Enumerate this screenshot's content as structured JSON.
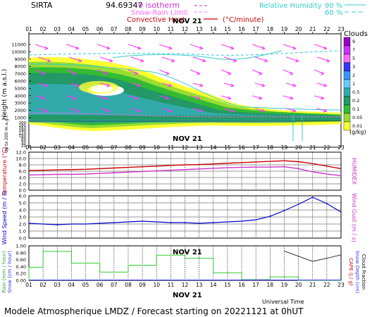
{
  "header": {
    "station": "SIRTA",
    "coords": "94.69347",
    "legend_isotherm": "0 isotherm",
    "legend_snow_rain": "Snow-Rain Limit",
    "legend_convective": "Convective Heat.",
    "legend_convective_unit": "(°C/minute)",
    "legend_rh": "Relative Humidity",
    "rh_90": "90 %",
    "rh_60": "60 %",
    "date_label": "NOV 21"
  },
  "hours": [
    "01",
    "02",
    "03",
    "04",
    "05",
    "06",
    "07",
    "08",
    "09",
    "10",
    "11",
    "12",
    "13",
    "14",
    "15",
    "16",
    "17",
    "18",
    "19",
    "20",
    "21",
    "22",
    "23"
  ],
  "panels": {
    "clouds": {
      "ylabel": "Height (m a.s.l.)",
      "ylabel_low": "Up to 200 m a.g.l.",
      "yticks_upper": [
        "11000",
        "10000",
        "9000",
        "8000",
        "7000",
        "6000",
        "5000",
        "4000",
        "3000",
        "2000",
        "1000"
      ],
      "yticks_lower": [
        "200",
        "180",
        "160",
        "140",
        "120",
        "100",
        "80",
        "60",
        "40",
        "20"
      ],
      "colorbar_title": "Clouds",
      "colorbar_labels": [
        "9",
        "7",
        "5",
        "3",
        "2",
        "1",
        "0.5",
        "0.2",
        "0.1",
        "0.05",
        "0.01"
      ],
      "colorbar_unit": "(g/kg)",
      "colorbar_colors": [
        "#9900cc",
        "#cc33ff",
        "#ff66ff",
        "#3333ff",
        "#3399ff",
        "#66ccff",
        "#33aaaa",
        "#229966",
        "#33bb33",
        "#99dd33",
        "#ffff33"
      ]
    },
    "temperature": {
      "ylabel_left": "Temperature (°C)",
      "ylabel_right": "HUMIDEX",
      "yticks": [
        "12.0",
        "10.0",
        "8.0",
        "6.0",
        "4.0",
        "2.0",
        "0.0"
      ]
    },
    "wind": {
      "ylabel_left": "Wind Speed (m / s)",
      "ylabel_right": "Wind Gust (m / s)",
      "yticks": [
        "6.0",
        "5.0",
        "4.0",
        "3.0",
        "2.0",
        "1.0",
        "0.0"
      ]
    },
    "rain": {
      "ylabel_left": "Rain (mm / hour)",
      "ylabel_left2": "Snow (cm / hour)",
      "ylabel_right": "CAPE (J / g)",
      "ylabel_right2": "Snow Depth (cm)",
      "ylabel_right3": "Cloud Fraction",
      "yticks": [
        "1.00",
        "0.80",
        "0.60",
        "0.40",
        "0.20",
        "0.00"
      ],
      "date_label": "NOV 21"
    }
  },
  "x_axis_title": "Universal Time",
  "footer": "Modele Atmospherique LMDZ / Forecast starting on 20221121 at 0hUT",
  "chart_data": [
    {
      "type": "line",
      "title": "",
      "xlabel": "",
      "ylabel": "Temperature (°C)",
      "x": [
        1,
        2,
        3,
        4,
        5,
        6,
        7,
        8,
        9,
        10,
        11,
        12,
        13,
        14,
        15,
        16,
        17,
        18,
        19,
        20,
        21,
        22,
        23
      ],
      "ylim": [
        0,
        12
      ],
      "series": [
        {
          "name": "Temperature",
          "color": "#cc0000",
          "values": [
            6.2,
            6.3,
            6.4,
            6.5,
            6.6,
            6.8,
            7.0,
            7.2,
            7.4,
            7.6,
            7.8,
            8.0,
            8.1,
            8.3,
            8.5,
            8.7,
            8.9,
            9.1,
            9.3,
            9.0,
            8.4,
            7.6,
            6.8
          ]
        },
        {
          "name": "HUMIDEX",
          "color": "#cc33cc",
          "values": [
            4.8,
            4.9,
            5.0,
            5.0,
            5.1,
            5.3,
            5.5,
            5.7,
            5.9,
            6.1,
            6.3,
            6.5,
            6.7,
            6.9,
            7.1,
            7.2,
            7.3,
            7.3,
            7.4,
            6.8,
            5.8,
            5.1,
            4.6
          ]
        }
      ]
    },
    {
      "type": "line",
      "title": "",
      "xlabel": "",
      "ylabel": "Wind Speed (m / s)",
      "x": [
        1,
        2,
        3,
        4,
        5,
        6,
        7,
        8,
        9,
        10,
        11,
        12,
        13,
        14,
        15,
        16,
        17,
        18,
        19,
        20,
        21,
        22,
        23
      ],
      "ylim": [
        0,
        6
      ],
      "series": [
        {
          "name": "Wind Speed",
          "color": "#0000cc",
          "values": [
            2.1,
            2.0,
            1.9,
            2.0,
            2.0,
            2.1,
            2.2,
            2.3,
            2.4,
            2.3,
            2.2,
            2.2,
            2.1,
            2.2,
            2.3,
            2.4,
            2.6,
            3.1,
            3.9,
            4.8,
            5.8,
            4.9,
            3.7
          ]
        }
      ]
    },
    {
      "type": "bar",
      "title": "",
      "xlabel": "Universal Time",
      "ylabel": "Rain (mm / hour)",
      "x": [
        1,
        2,
        3,
        4,
        5,
        6,
        7,
        8,
        9,
        10,
        11,
        12,
        13,
        14,
        15,
        16,
        17,
        18,
        19,
        20,
        21,
        22,
        23
      ],
      "ylim": [
        0,
        1
      ],
      "series": [
        {
          "name": "Rain",
          "color": "#33cc33",
          "values": [
            0.38,
            0.84,
            0.84,
            0.5,
            0.5,
            0.24,
            0.24,
            0.44,
            0.44,
            0.73,
            0.73,
            0.64,
            0.64,
            0.22,
            0.22,
            0.02,
            0.02,
            0.1,
            0.1,
            0.0,
            0.0,
            0.0,
            0.0
          ]
        },
        {
          "name": "Cloud Fraction",
          "color": "#000000",
          "values": [
            null,
            null,
            null,
            null,
            null,
            null,
            null,
            null,
            null,
            null,
            null,
            null,
            null,
            null,
            null,
            null,
            null,
            null,
            0.85,
            0.7,
            0.55,
            0.64,
            0.74
          ]
        }
      ]
    }
  ]
}
